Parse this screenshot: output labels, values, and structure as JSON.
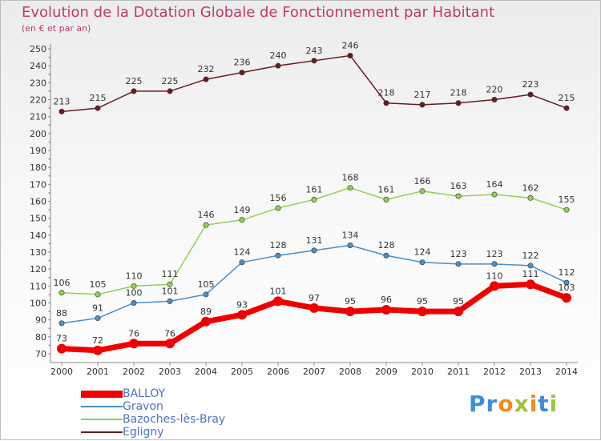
{
  "header": {
    "title": "Evolution de la Dotation Globale de Fonctionnement par Habitant",
    "subtitle": "(en € et par an)"
  },
  "logo": {
    "text": "Proxiti"
  },
  "colors": {
    "balloy": "#ee0000",
    "gravon": "#4a90c8",
    "bazoches": "#8ed34e",
    "egligny": "#6b1a1f",
    "title": "#c0396b",
    "legend_text": "#4a73c2"
  },
  "chart_data": {
    "type": "line",
    "title": "Evolution de la Dotation Globale de Fonctionnement par Habitant",
    "subtitle": "(en € et par an)",
    "x": [
      "2000",
      "2001",
      "2002",
      "2003",
      "2004",
      "2005",
      "2006",
      "2007",
      "2008",
      "2009",
      "2010",
      "2011",
      "2012",
      "2013",
      "2014"
    ],
    "ylim": [
      70,
      250
    ],
    "yticks": [
      70,
      80,
      90,
      100,
      110,
      120,
      130,
      140,
      150,
      160,
      170,
      180,
      190,
      200,
      210,
      220,
      230,
      240,
      250
    ],
    "grid": false,
    "legend_position": "bottom-left",
    "series": [
      {
        "name": "BALLOY",
        "color": "#ee0000",
        "width": 7,
        "values": [
          73,
          72,
          76,
          76,
          89,
          93,
          101,
          97,
          95,
          96,
          95,
          95,
          110,
          111,
          103
        ]
      },
      {
        "name": "Gravon",
        "color": "#4a90c8",
        "width": 1.5,
        "values": [
          88,
          91,
          100,
          101,
          105,
          124,
          128,
          131,
          134,
          128,
          124,
          123,
          123,
          122,
          112
        ]
      },
      {
        "name": "Bazoches-lès-Bray",
        "color": "#8ed34e",
        "width": 1.5,
        "values": [
          106,
          105,
          110,
          111,
          146,
          149,
          156,
          161,
          168,
          161,
          166,
          163,
          164,
          162,
          155
        ]
      },
      {
        "name": "Egligny",
        "color": "#6b1a1f",
        "width": 1.5,
        "values": [
          213,
          215,
          225,
          225,
          232,
          236,
          240,
          243,
          246,
          218,
          217,
          218,
          220,
          223,
          215
        ]
      }
    ]
  }
}
